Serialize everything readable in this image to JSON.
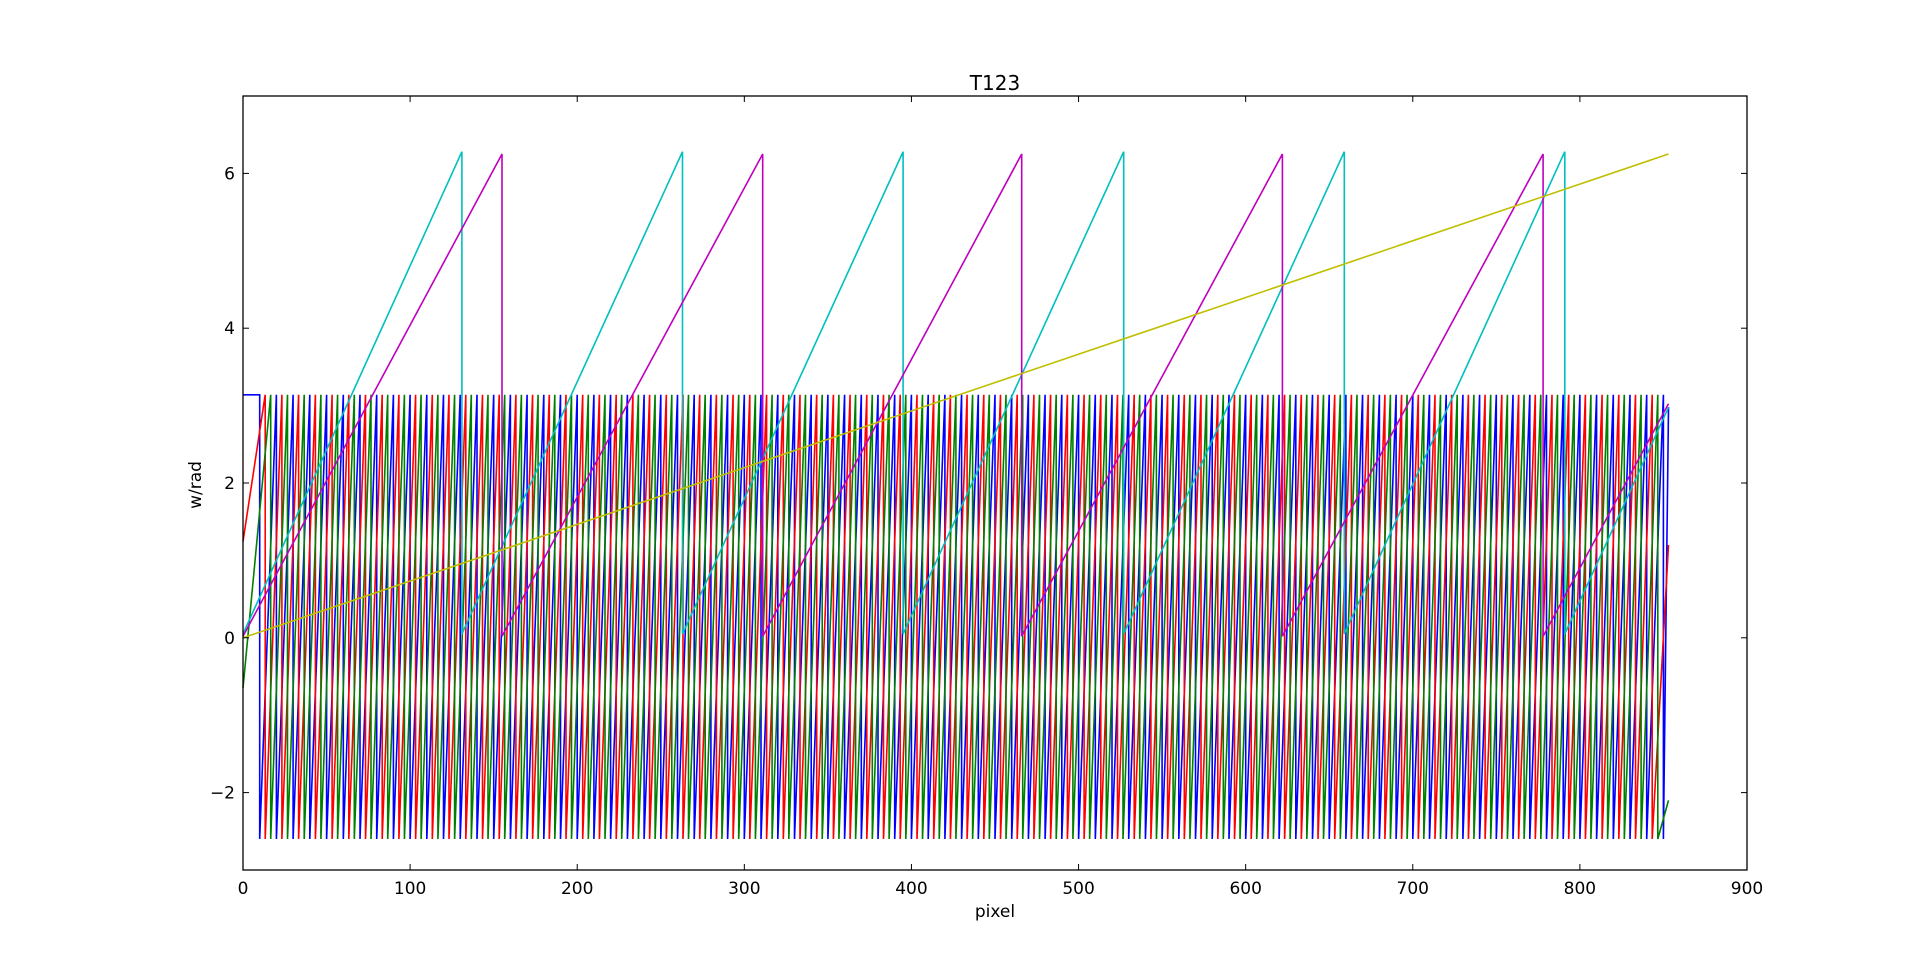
{
  "chart_data": {
    "type": "line",
    "title": "T123",
    "xlabel": "pixel",
    "ylabel": "w/rad",
    "xlim": [
      0,
      900
    ],
    "ylim": [
      -3,
      7
    ],
    "xticks": [
      0,
      100,
      200,
      300,
      400,
      500,
      600,
      700,
      800,
      900
    ],
    "yticks": [
      -2,
      0,
      2,
      4,
      6
    ],
    "xtick_labels": [
      "0",
      "100",
      "200",
      "300",
      "400",
      "500",
      "600",
      "700",
      "800",
      "900"
    ],
    "ytick_labels": [
      "−2",
      "0",
      "2",
      "4",
      "6"
    ],
    "grid": false,
    "legend": "none",
    "x_end": 853,
    "series": [
      {
        "color": "#0000ff",
        "kind": "wrapped",
        "period": 10.0,
        "phase": 0.0,
        "lo": -2.6,
        "hi": 3.14,
        "end_value": 2.98
      },
      {
        "color": "#ff0000",
        "kind": "wrapped",
        "period": 10.0,
        "phase": 3.3,
        "lo": -2.6,
        "hi": 3.14,
        "end_value": 1.2
      },
      {
        "color": "#008000",
        "kind": "wrapped",
        "period": 10.0,
        "phase": 6.6,
        "lo": -2.6,
        "hi": 3.14,
        "end_value": -2.1
      },
      {
        "color": "#00bfbf",
        "kind": "wrapped",
        "period": 132.0,
        "phase": 0.0,
        "lo": 0.05,
        "hi": 6.28,
        "wrap_x": [
          131,
          263,
          395,
          527,
          659,
          791
        ]
      },
      {
        "color": "#bf00bf",
        "kind": "wrapped",
        "period": 155.5,
        "phase": 0.0,
        "lo": 0.02,
        "hi": 6.25,
        "wrap_x": [
          155,
          311,
          466,
          622,
          778
        ]
      },
      {
        "color": "#bfbf00",
        "kind": "linear",
        "points": [
          [
            0,
            0.0
          ],
          [
            853,
            6.25
          ]
        ]
      }
    ]
  }
}
